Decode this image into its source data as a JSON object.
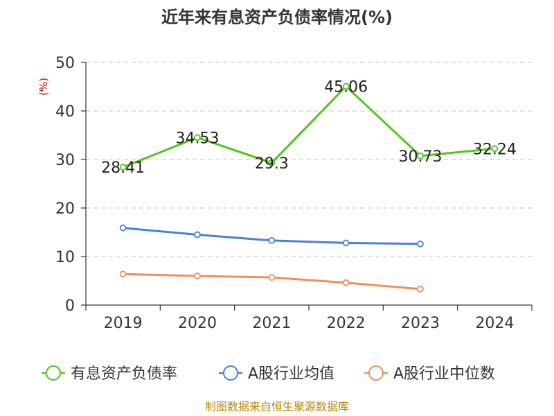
{
  "chart_data": {
    "type": "line",
    "title": "近年来有息资产负债率情况(%)",
    "ylabel": "(%)",
    "xlabel": "",
    "categories": [
      "2019",
      "2020",
      "2021",
      "2022",
      "2023",
      "2024"
    ],
    "ylim": [
      0,
      50
    ],
    "yticks": [
      "0",
      "10",
      "20",
      "30",
      "40",
      "50"
    ],
    "grid": true,
    "legend_position": "bottom",
    "series": [
      {
        "name": "有息资产负债率",
        "color": "#52c41a",
        "values": [
          28.41,
          34.53,
          29.3,
          45.06,
          30.73,
          32.24
        ],
        "labels": [
          "28.41",
          "34.53",
          "29.3",
          "45.06",
          "30.73",
          "32.24"
        ]
      },
      {
        "name": "A股行业均值",
        "color": "#4a7fdc",
        "values": [
          15.9,
          14.5,
          13.3,
          12.8,
          12.6,
          null
        ]
      },
      {
        "name": "A股行业中位数",
        "color": "#f48d5a",
        "values": [
          6.4,
          6.0,
          5.7,
          4.6,
          3.3,
          null
        ]
      }
    ]
  },
  "source": "制图数据来自恒生聚源数据库"
}
